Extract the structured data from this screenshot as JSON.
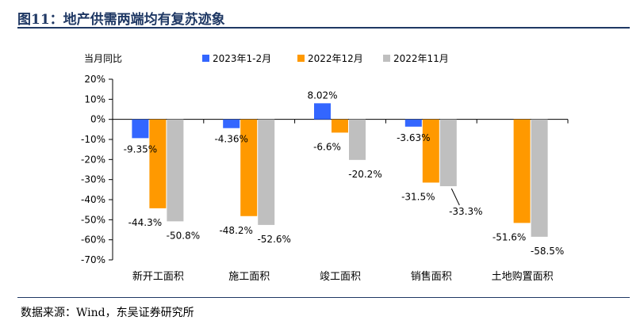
{
  "figure": {
    "title": "图11：地产供需两端均有复苏迹象",
    "source": "数据来源：Wind，东吴证券研究所"
  },
  "colors": {
    "header_line": "#1f3864",
    "series": [
      "#3366ff",
      "#ff9900",
      "#bfbfbf"
    ]
  },
  "chart_data": {
    "type": "bar",
    "ylabel": "当月同比",
    "ylim": [
      -70,
      20
    ],
    "yticks": [
      20,
      10,
      0,
      -10,
      -20,
      -30,
      -40,
      -50,
      -60,
      -70
    ],
    "ytick_labels": [
      "20%",
      "10%",
      "0%",
      "-10%",
      "-20%",
      "-30%",
      "-40%",
      "-50%",
      "-60%",
      "-70%"
    ],
    "categories": [
      "新开工面积",
      "施工面积",
      "竣工面积",
      "销售面积",
      "土地购置面积"
    ],
    "legend_position": "top",
    "grid": false,
    "series": [
      {
        "name": "2023年1-2月",
        "values": [
          -9.35,
          -4.36,
          8.02,
          -3.63,
          null
        ],
        "labels": [
          "-9.35%",
          "-4.36%",
          "8.02%",
          "-3.63%",
          ""
        ]
      },
      {
        "name": "2022年12月",
        "values": [
          -44.3,
          -48.2,
          -6.6,
          -31.5,
          -51.6
        ],
        "labels": [
          "-44.3%",
          "-48.2%",
          "-6.6%",
          "-31.5%",
          "-51.6%"
        ]
      },
      {
        "name": "2022年11月",
        "values": [
          -50.8,
          -52.6,
          -20.2,
          -33.3,
          -58.5
        ],
        "labels": [
          "-50.8%",
          "-52.6%",
          "-20.2%",
          "-33.3%",
          "-58.5%"
        ]
      }
    ]
  }
}
